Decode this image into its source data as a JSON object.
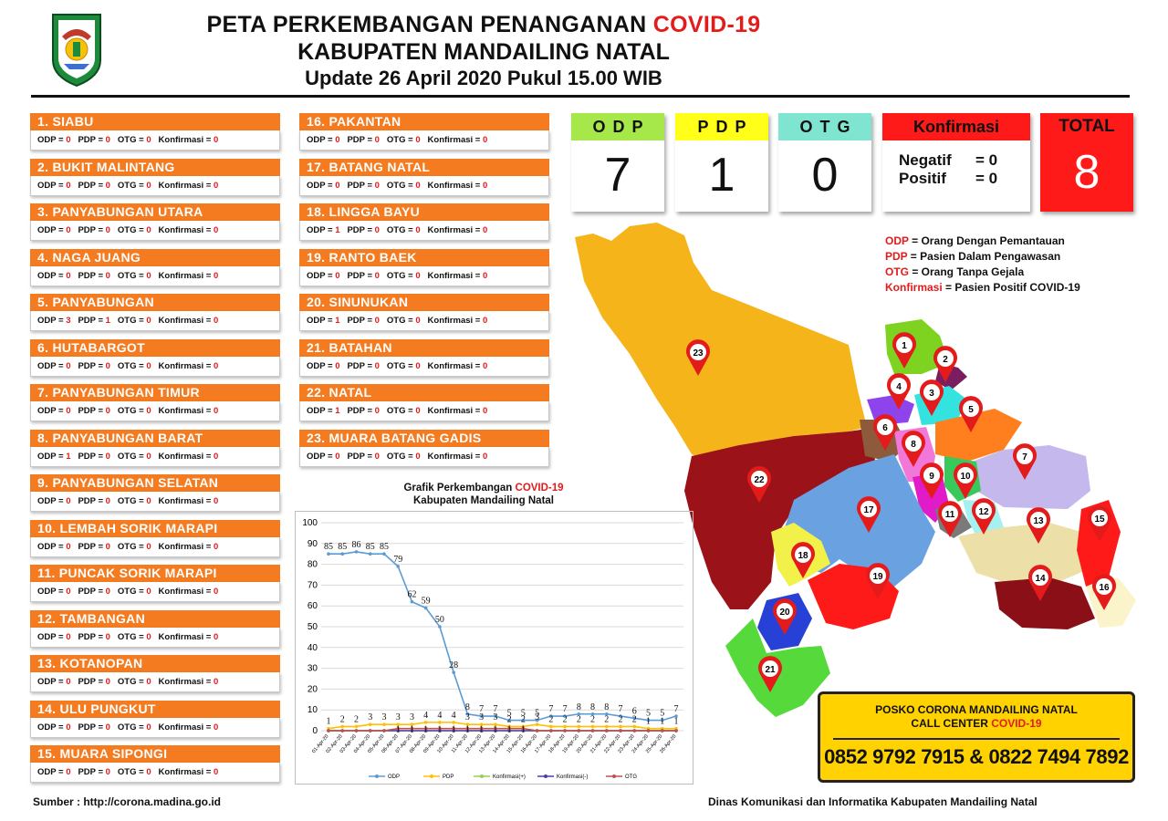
{
  "header": {
    "title_prefix": "PETA PERKEMBANGAN PENANGANAN ",
    "title_highlight": "COVID-19",
    "subtitle": "KABUPATEN MANDAILING NATAL",
    "update": "Update 26 April 2020 Pukul 15.00 WIB"
  },
  "labels": {
    "odp": "ODP = ",
    "pdp": "PDP = ",
    "otg": "OTG = ",
    "konf": "Konfirmasi = "
  },
  "districts": [
    {
      "name": "1. SIABU",
      "odp": "0",
      "pdp": "0",
      "otg": "0",
      "konf": "0"
    },
    {
      "name": "2. BUKIT MALINTANG",
      "odp": "0",
      "pdp": "0",
      "otg": "0",
      "konf": "0"
    },
    {
      "name": "3. PANYABUNGAN UTARA",
      "odp": "0",
      "pdp": "0",
      "otg": "0",
      "konf": "0"
    },
    {
      "name": "4. NAGA JUANG",
      "odp": "0",
      "pdp": "0",
      "otg": "0",
      "konf": "0"
    },
    {
      "name": "5. PANYABUNGAN",
      "odp": "3",
      "pdp": "1",
      "otg": "0",
      "konf": "0"
    },
    {
      "name": "6. HUTABARGOT",
      "odp": "0",
      "pdp": "0",
      "otg": "0",
      "konf": "0"
    },
    {
      "name": "7. PANYABUNGAN TIMUR",
      "odp": "0",
      "pdp": "0",
      "otg": "0",
      "konf": "0"
    },
    {
      "name": "8. PANYABUNGAN BARAT",
      "odp": "1",
      "pdp": "0",
      "otg": "0",
      "konf": "0"
    },
    {
      "name": "9. PANYABUNGAN SELATAN",
      "odp": "0",
      "pdp": "0",
      "otg": "0",
      "konf": "0"
    },
    {
      "name": "10. LEMBAH SORIK MARAPI",
      "odp": "0",
      "pdp": "0",
      "otg": "0",
      "konf": "0"
    },
    {
      "name": "11. PUNCAK SORIK MARAPI",
      "odp": "0",
      "pdp": "0",
      "otg": "0",
      "konf": "0"
    },
    {
      "name": "12. TAMBANGAN",
      "odp": "0",
      "pdp": "0",
      "otg": "0",
      "konf": "0"
    },
    {
      "name": "13. KOTANOPAN",
      "odp": "0",
      "pdp": "0",
      "otg": "0",
      "konf": "0"
    },
    {
      "name": "14. ULU PUNGKUT",
      "odp": "0",
      "pdp": "0",
      "otg": "0",
      "konf": "0"
    },
    {
      "name": "15. MUARA SIPONGI",
      "odp": "0",
      "pdp": "0",
      "otg": "0",
      "konf": "0"
    },
    {
      "name": "16. PAKANTAN",
      "odp": "0",
      "pdp": "0",
      "otg": "0",
      "konf": "0"
    },
    {
      "name": "17. BATANG NATAL",
      "odp": "0",
      "pdp": "0",
      "otg": "0",
      "konf": "0"
    },
    {
      "name": "18. LINGGA BAYU",
      "odp": "1",
      "pdp": "0",
      "otg": "0",
      "konf": "0"
    },
    {
      "name": "19. RANTO BAEK",
      "odp": "0",
      "pdp": "0",
      "otg": "0",
      "konf": "0"
    },
    {
      "name": "20. SINUNUKAN",
      "odp": "1",
      "pdp": "0",
      "otg": "0",
      "konf": "0"
    },
    {
      "name": "21. BATAHAN",
      "odp": "0",
      "pdp": "0",
      "otg": "0",
      "konf": "0"
    },
    {
      "name": "22. NATAL",
      "odp": "1",
      "pdp": "0",
      "otg": "0",
      "konf": "0"
    },
    {
      "name": "23. MUARA BATANG GADIS",
      "odp": "0",
      "pdp": "0",
      "otg": "0",
      "konf": "0"
    }
  ],
  "summary": {
    "odp_label": "ODP",
    "odp_value": "7",
    "pdp_label": "PDP",
    "pdp_value": "1",
    "otg_label": "OTG",
    "otg_value": "0",
    "konf_label": "Konfirmasi",
    "negatif_label": "Negatif",
    "negatif_value": "= 0",
    "positif_label": "Positif",
    "positif_value": "= 0",
    "total_label": "TOTAL",
    "total_value": "8",
    "colors": {
      "odp": "#a6e84a",
      "pdp": "#ffff1a",
      "otg": "#7fe5d0",
      "konf": "#ff1a1a",
      "total": "#ff1a1a"
    }
  },
  "legend": [
    {
      "term": "ODP",
      "desc": " = Orang Dengan Pemantauan"
    },
    {
      "term": "PDP",
      "desc": " = Pasien Dalam Pengawasan"
    },
    {
      "term": "OTG",
      "desc": " = Orang Tanpa Gejala"
    },
    {
      "term": "Konfirmasi",
      "desc": " = Pasien Positif COVID-19"
    }
  ],
  "map": {
    "markers": [
      "1",
      "2",
      "3",
      "4",
      "5",
      "6",
      "7",
      "8",
      "9",
      "10",
      "11",
      "12",
      "13",
      "14",
      "15",
      "16",
      "17",
      "18",
      "19",
      "20",
      "21",
      "22",
      "23"
    ],
    "marker_color": "#e31b1b"
  },
  "chart_title": {
    "line1_prefix": "Grafik Perkembangan ",
    "line1_highlight": "COVID-19",
    "line2": "Kabupaten Mandailing Natal"
  },
  "chart_data": {
    "type": "line",
    "x": [
      "01-Apr-20",
      "02-Apr-20",
      "03-Apr-20",
      "04-Apr-20",
      "05-Apr-20",
      "06-Apr-20",
      "07-Apr-20",
      "08-Apr-20",
      "09-Apr-20",
      "10-Apr-20",
      "11-Apr-20",
      "12-Apr-20",
      "13-Apr-20",
      "14-Apr-20",
      "15-Apr-20",
      "16-Apr-20",
      "17-Apr-20",
      "18-Apr-20",
      "19-Apr-20",
      "20-Apr-20",
      "21-Apr-20",
      "22-Apr-20",
      "23-Apr-20",
      "24-Apr-20",
      "25-Apr-20",
      "26-Apr-20"
    ],
    "ylim": [
      0,
      100
    ],
    "yticks": [
      0,
      10,
      20,
      30,
      40,
      50,
      60,
      70,
      80,
      90,
      100
    ],
    "series": [
      {
        "name": "ODP",
        "color": "#5b9bd5",
        "values": [
          85,
          85,
          86,
          85,
          85,
          79,
          62,
          59,
          50,
          28,
          8,
          7,
          7,
          5,
          5,
          5,
          7,
          7,
          8,
          8,
          8,
          7,
          6,
          5,
          5,
          7
        ]
      },
      {
        "name": "PDP",
        "color": "#ffc000",
        "values": [
          1,
          2,
          2,
          3,
          3,
          3,
          3,
          4,
          4,
          4,
          3,
          3,
          3,
          2,
          2,
          3,
          2,
          2,
          2,
          2,
          2,
          2,
          2,
          1,
          1,
          1
        ]
      },
      {
        "name": "Konfirmasi(+)",
        "color": "#92d050",
        "values": [
          0,
          0,
          0,
          0,
          0,
          0,
          0,
          0,
          0,
          0,
          0,
          0,
          0,
          0,
          0,
          0,
          0,
          0,
          0,
          0,
          0,
          0,
          0,
          0,
          0,
          0
        ]
      },
      {
        "name": "Konfirmasi(-)",
        "color": "#4b3fa8",
        "values": [
          0,
          0,
          0,
          0,
          0,
          0,
          0,
          0,
          0,
          0,
          0,
          0,
          0,
          0,
          0,
          0,
          0,
          0,
          0,
          0,
          0,
          0,
          0,
          0,
          0,
          0
        ]
      },
      {
        "name": "OTG",
        "color": "#c0504d",
        "values": [
          0,
          0,
          0,
          0,
          0,
          1,
          1,
          1,
          1,
          1,
          1,
          1,
          1,
          1,
          1,
          0,
          0,
          0,
          0,
          0,
          0,
          0,
          0,
          0,
          0,
          0
        ]
      }
    ]
  },
  "posko": {
    "line1": "POSKO CORONA MANDAILING NATAL",
    "line2_prefix": "CALL CENTER ",
    "line2_highlight": "COVID-19",
    "phones": "0852 9792 7915 & 0822 7494 7892"
  },
  "footer": {
    "source": "Sumber : http://corona.madina.go.id",
    "dept": "Dinas Komunikasi dan Informatika Kabupaten Mandailing Natal"
  }
}
